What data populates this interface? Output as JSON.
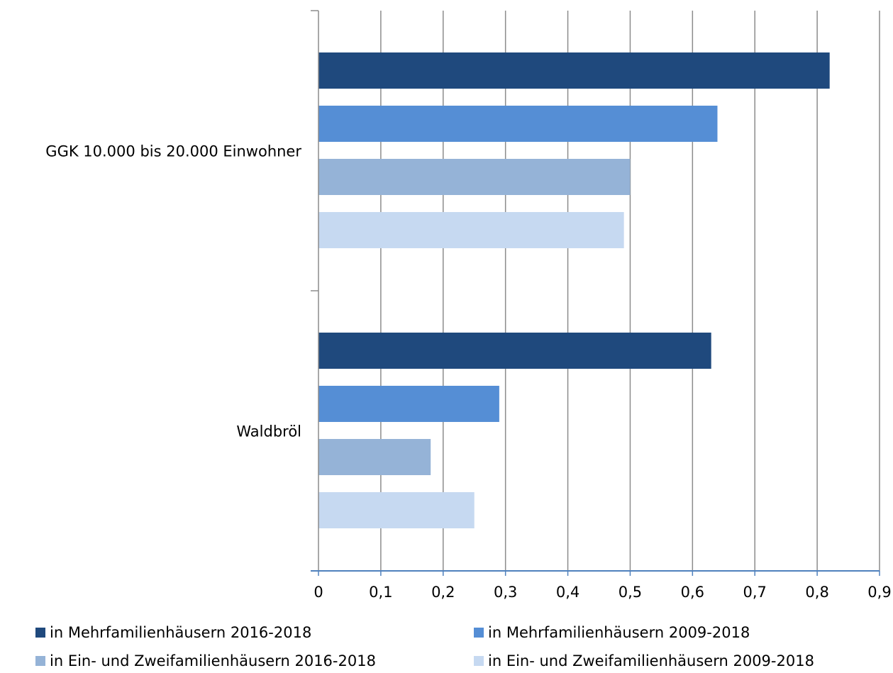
{
  "chart_data": {
    "type": "bar",
    "orientation": "horizontal",
    "categories": [
      "GGK 10.000 bis 20.000 Einwohner",
      "Waldbröl"
    ],
    "series": [
      {
        "name": "in Mehrfamilienhäusern 2016-2018",
        "color": "#1f497d",
        "values": [
          0.82,
          0.63
        ]
      },
      {
        "name": "in Mehrfamilienhäusern 2009-2018",
        "color": "#558ed5",
        "values": [
          0.64,
          0.29
        ]
      },
      {
        "name": "in Ein- und Zweifamilienhäusern 2016-2018",
        "color": "#95b3d7",
        "values": [
          0.5,
          0.18
        ]
      },
      {
        "name": "in Ein- und Zweifamilienhäusern 2009-2018",
        "color": "#c6d9f1",
        "values": [
          0.49,
          0.25
        ]
      }
    ],
    "xlim": [
      0,
      0.9
    ],
    "ticks": [
      "0",
      "0,1",
      "0,2",
      "0,3",
      "0,4",
      "0,5",
      "0,6",
      "0,7",
      "0,8",
      "0,9"
    ],
    "grid": true,
    "legend_position": "bottom",
    "title": "",
    "xlabel": "",
    "ylabel": ""
  }
}
